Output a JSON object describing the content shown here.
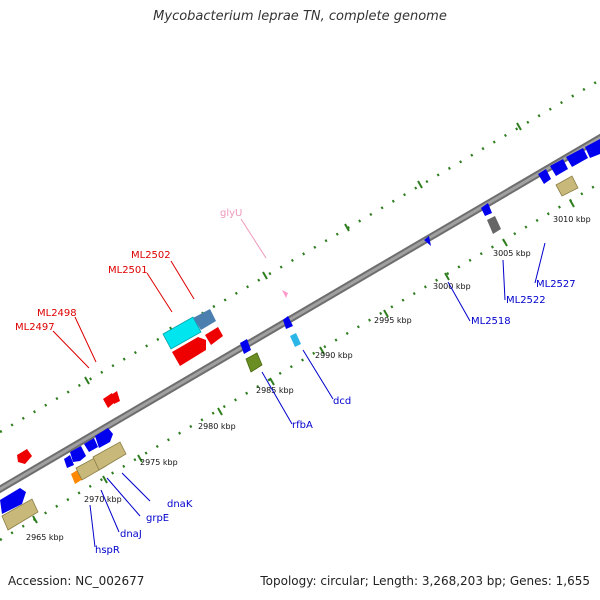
{
  "title": "Mycobacterium leprae TN, complete genome",
  "footer": {
    "accession": "Accession: NC_002677",
    "summary": "Topology: circular; Length: 3,268,203 bp; Genes: 1,655"
  },
  "ticks": {
    "t2965": "2965 kbp",
    "t2970": "2970 kbp",
    "t2975": "2975 kbp",
    "t2980": "2980 kbp",
    "t2985": "2985 kbp",
    "t2990": "2990 kbp",
    "t2995": "2995 kbp",
    "t3000": "3000 kbp",
    "t3005": "3005 kbp",
    "t3010": "3010 kbp"
  },
  "labels": {
    "glyU": "glyU",
    "ML2502": "ML2502",
    "ML2501": "ML2501",
    "ML2498": "ML2498",
    "ML2497": "ML2497",
    "dnaK": "dnaK",
    "grpE": "grpE",
    "dnaJ": "dnaJ",
    "hspR": "hspR",
    "rfbA": "rfbA",
    "dcd": "dcd",
    "ML2518": "ML2518",
    "ML2522": "ML2522",
    "ML2527": "ML2527"
  },
  "colors": {
    "backbone": "#888888",
    "tick_green": "#2e7d1e",
    "red_label": "#dd0000",
    "blue_label": "#0000cc",
    "pink_label": "#ee99bb",
    "gene_blue": "#0000ee",
    "gene_red": "#ee0000",
    "gene_cyan": "#00e5ee",
    "gene_tan": "#c8b97a",
    "gene_orange": "#ff8800",
    "gene_olive": "#6b8e23",
    "gene_gray": "#666666",
    "gene_steel": "#4a7fb0",
    "gene_pink": "#ff99cc"
  }
}
